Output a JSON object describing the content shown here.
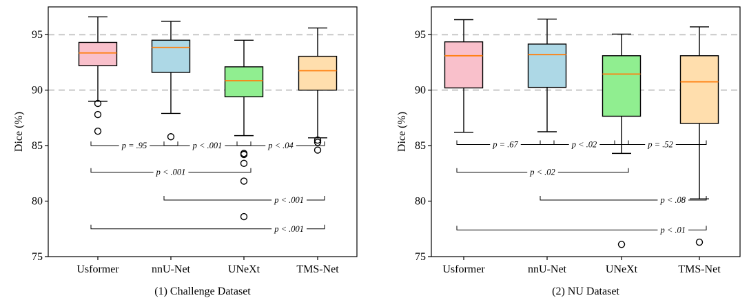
{
  "chart_data": [
    {
      "type": "box",
      "title": "(1) Challenge Dataset",
      "ylabel": "Dice (%)",
      "ylim": [
        75,
        97.5
      ],
      "yticks": [
        75,
        80,
        85,
        90,
        95
      ],
      "reference_lines": [
        90,
        95
      ],
      "categories": [
        "Usformer",
        "nnU-Net",
        "UNeXt",
        "TMS-Net"
      ],
      "box_colors": [
        "#f9c0cb",
        "#add8e6",
        "#90ee90",
        "#ffdead"
      ],
      "median_color": "#ff7f0e",
      "boxes": [
        {
          "whislo": 89.0,
          "q1": 92.2,
          "med": 93.35,
          "q3": 94.3,
          "whishi": 96.6,
          "fliers": [
            88.8,
            87.8,
            86.3
          ]
        },
        {
          "whislo": 87.9,
          "q1": 91.6,
          "med": 93.85,
          "q3": 94.5,
          "whishi": 96.2,
          "fliers": [
            85.8
          ]
        },
        {
          "whislo": 85.9,
          "q1": 89.4,
          "med": 90.85,
          "q3": 92.1,
          "whishi": 94.5,
          "fliers": [
            84.3,
            84.2,
            83.4,
            81.8,
            78.6
          ]
        },
        {
          "whislo": 85.7,
          "q1": 90.0,
          "med": 91.75,
          "q3": 93.05,
          "whishi": 95.6,
          "fliers": [
            85.5,
            85.3,
            84.6
          ]
        }
      ],
      "comparisons": [
        {
          "from": 0,
          "to": 1,
          "y": 85.0,
          "text": "p = .95"
        },
        {
          "from": 1,
          "to": 2,
          "y": 85.0,
          "text": "p < .001"
        },
        {
          "from": 2,
          "to": 3,
          "y": 85.0,
          "text": "p < .04"
        },
        {
          "from": 0,
          "to": 2,
          "y": 82.6,
          "text": "p < .001"
        },
        {
          "from": 1,
          "to": 3,
          "y": 80.1,
          "text": "p < .001"
        },
        {
          "from": 0,
          "to": 3,
          "y": 77.5,
          "text": "p < .001"
        }
      ]
    },
    {
      "type": "box",
      "title": "(2) NU Dataset",
      "ylabel": "Dice (%)",
      "ylim": [
        75,
        97.5
      ],
      "yticks": [
        75,
        80,
        85,
        90,
        95
      ],
      "reference_lines": [
        90,
        95
      ],
      "categories": [
        "Usformer",
        "nnU-Net",
        "UNeXt",
        "TMS-Net"
      ],
      "box_colors": [
        "#f9c0cb",
        "#add8e6",
        "#90ee90",
        "#ffdead"
      ],
      "median_color": "#ff7f0e",
      "boxes": [
        {
          "whislo": 86.2,
          "q1": 90.2,
          "med": 93.1,
          "q3": 94.35,
          "whishi": 96.35,
          "fliers": []
        },
        {
          "whislo": 86.25,
          "q1": 90.25,
          "med": 93.2,
          "q3": 94.15,
          "whishi": 96.4,
          "fliers": []
        },
        {
          "whislo": 84.3,
          "q1": 87.65,
          "med": 91.45,
          "q3": 93.1,
          "whishi": 95.05,
          "fliers": [
            76.1
          ]
        },
        {
          "whislo": 80.2,
          "q1": 87.0,
          "med": 90.75,
          "q3": 93.1,
          "whishi": 95.7,
          "fliers": [
            76.3
          ]
        }
      ],
      "comparisons": [
        {
          "from": 0,
          "to": 1,
          "y": 85.1,
          "text": "p = .67"
        },
        {
          "from": 1,
          "to": 2,
          "y": 85.1,
          "text": "p < .02"
        },
        {
          "from": 2,
          "to": 3,
          "y": 85.1,
          "text": "p = .52"
        },
        {
          "from": 0,
          "to": 2,
          "y": 82.6,
          "text": "p < .02"
        },
        {
          "from": 1,
          "to": 3,
          "y": 80.1,
          "text": "p < .08"
        },
        {
          "from": 0,
          "to": 3,
          "y": 77.4,
          "text": "p < .01"
        }
      ]
    }
  ]
}
